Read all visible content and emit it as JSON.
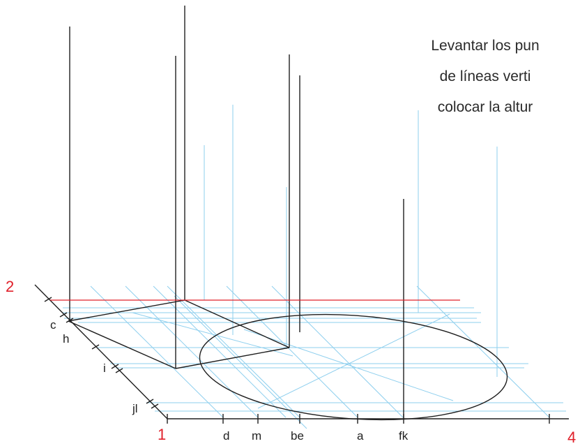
{
  "note": {
    "lines": [
      "Levantar los pun",
      "de líneas verti",
      "colocar la altur"
    ]
  },
  "corner_labels": {
    "one": "1",
    "two": "2",
    "four": "4"
  },
  "bottom_labels": [
    "d",
    "m",
    "be",
    "a",
    "fk"
  ],
  "left_labels": [
    "c",
    "h",
    "i",
    "jl"
  ],
  "colors": {
    "construction": "#8ecfee",
    "ink": "#1e1e1e",
    "accent": "#e0202a"
  }
}
